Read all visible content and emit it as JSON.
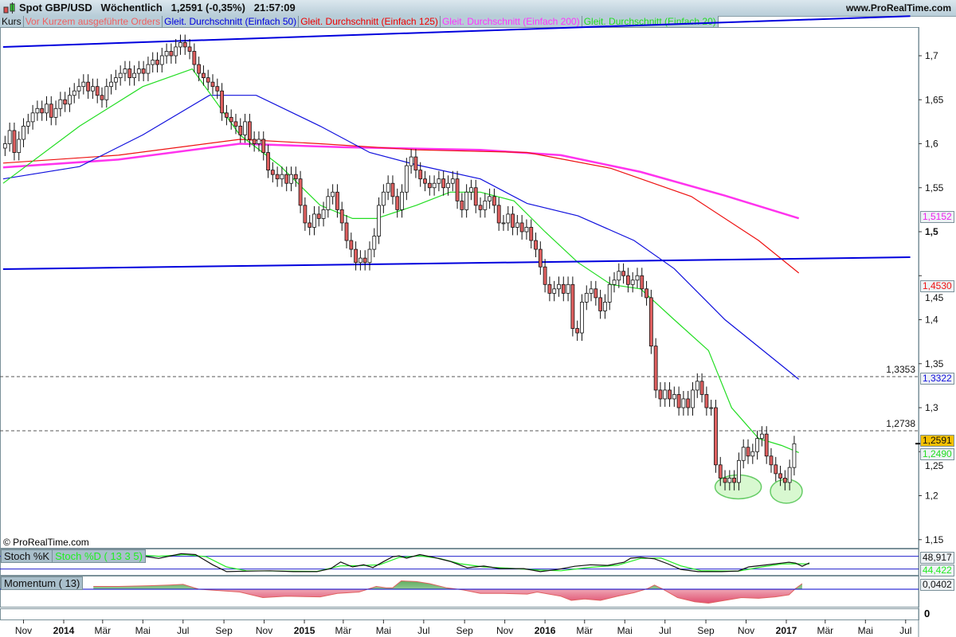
{
  "header": {
    "title": "Spot GBP/USD   Wöchentlich   1,2591 (-0,35%)   21:57:09",
    "site": "www.ProRealTime.com",
    "legend": [
      {
        "label": "Kurs",
        "color": "#111111"
      },
      {
        "label": "Vor Kurzem ausgeführte Orders",
        "color": "#f06060"
      },
      {
        "label": "Gleit. Durchschnitt (Einfach 50)",
        "color": "#0000dd"
      },
      {
        "label": "Gleit. Durchschnitt (Einfach 125)",
        "color": "#ee0000"
      },
      {
        "label": "Gleit. Durchschnitt (Einfach 200)",
        "color": "#ff33ff"
      },
      {
        "label": "Gleit. Durchschnitt (Einfach 20)",
        "color": "#22dd22"
      }
    ]
  },
  "copyright": "© ProRealTime.com",
  "chart_data": {
    "type": "candlestick",
    "interval": "weekly",
    "first_week": "2013-10-04",
    "first_open": 1.595,
    "closes": [
      1.6,
      1.615,
      1.59,
      1.605,
      1.62,
      1.625,
      1.635,
      1.64,
      1.635,
      1.645,
      1.63,
      1.64,
      1.65,
      1.645,
      1.655,
      1.66,
      1.665,
      1.67,
      1.66,
      1.665,
      1.655,
      1.65,
      1.665,
      1.67,
      1.675,
      1.68,
      1.685,
      1.675,
      1.68,
      1.685,
      1.68,
      1.69,
      1.695,
      1.69,
      1.7,
      1.705,
      1.7,
      1.71,
      1.715,
      1.71,
      1.705,
      1.69,
      1.68,
      1.675,
      1.67,
      1.665,
      1.66,
      1.635,
      1.63,
      1.625,
      1.62,
      1.61,
      1.625,
      1.605,
      1.6,
      1.605,
      1.59,
      1.57,
      1.565,
      1.56,
      1.565,
      1.555,
      1.565,
      1.56,
      1.53,
      1.51,
      1.505,
      1.52,
      1.515,
      1.525,
      1.54,
      1.545,
      1.525,
      1.51,
      1.49,
      1.48,
      1.465,
      1.47,
      1.465,
      1.48,
      1.495,
      1.53,
      1.545,
      1.555,
      1.54,
      1.525,
      1.545,
      1.575,
      1.585,
      1.57,
      1.56,
      1.555,
      1.55,
      1.555,
      1.56,
      1.55,
      1.555,
      1.56,
      1.535,
      1.525,
      1.545,
      1.55,
      1.53,
      1.525,
      1.535,
      1.54,
      1.53,
      1.51,
      1.51,
      1.52,
      1.505,
      1.51,
      1.5,
      1.505,
      1.49,
      1.48,
      1.46,
      1.44,
      1.43,
      1.435,
      1.44,
      1.43,
      1.44,
      1.39,
      1.385,
      1.42,
      1.43,
      1.435,
      1.425,
      1.41,
      1.42,
      1.44,
      1.445,
      1.455,
      1.45,
      1.44,
      1.445,
      1.45,
      1.435,
      1.425,
      1.37,
      1.32,
      1.31,
      1.32,
      1.31,
      1.315,
      1.3,
      1.31,
      1.3,
      1.32,
      1.33,
      1.315,
      1.3,
      1.3,
      1.235,
      1.22,
      1.215,
      1.22,
      1.215,
      1.24,
      1.255,
      1.245,
      1.25,
      1.265,
      1.27,
      1.245,
      1.235,
      1.225,
      1.22,
      1.215,
      1.232,
      1.259
    ],
    "moving_averages": [
      {
        "name": "Gleit. Durchschnitt (Einfach 20)",
        "color": "#22dd22",
        "last": "1,2490",
        "points": [
          [
            "2013-10-01",
            1.555
          ],
          [
            "2014-01-25",
            1.62
          ],
          [
            "2014-05-01",
            1.665
          ],
          [
            "2014-07-15",
            1.685
          ],
          [
            "2014-09-25",
            1.61
          ],
          [
            "2014-11-25",
            1.575
          ],
          [
            "2015-01-25",
            1.53
          ],
          [
            "2015-03-15",
            1.515
          ],
          [
            "2015-04-20",
            1.515
          ],
          [
            "2015-06-20",
            1.53
          ],
          [
            "2015-08-10",
            1.545
          ],
          [
            "2015-09-25",
            1.545
          ],
          [
            "2015-11-15",
            1.535
          ],
          [
            "2016-01-01",
            1.5
          ],
          [
            "2016-02-20",
            1.465
          ],
          [
            "2016-04-10",
            1.44
          ],
          [
            "2016-05-25",
            1.435
          ],
          [
            "2016-07-15",
            1.4
          ],
          [
            "2016-09-05",
            1.365
          ],
          [
            "2016-10-10",
            1.3
          ],
          [
            "2016-11-20",
            1.265
          ],
          [
            "2016-12-25",
            1.257
          ],
          [
            "2017-01-20",
            1.249
          ]
        ]
      },
      {
        "name": "Gleit. Durchschnitt (Einfach 50)",
        "color": "#1010dd",
        "last": "1,3322",
        "points": [
          [
            "2013-10-01",
            1.56
          ],
          [
            "2014-01-25",
            1.574
          ],
          [
            "2014-05-01",
            1.61
          ],
          [
            "2014-08-10",
            1.655
          ],
          [
            "2014-10-20",
            1.655
          ],
          [
            "2015-01-25",
            1.62
          ],
          [
            "2015-04-10",
            1.59
          ],
          [
            "2015-06-20",
            1.576
          ],
          [
            "2015-09-25",
            1.56
          ],
          [
            "2015-12-05",
            1.532
          ],
          [
            "2016-02-20",
            1.518
          ],
          [
            "2016-05-15",
            1.49
          ],
          [
            "2016-07-15",
            1.458
          ],
          [
            "2016-09-30",
            1.4
          ],
          [
            "2017-01-20",
            1.3322
          ]
        ]
      },
      {
        "name": "Gleit. Durchschnitt (Einfach 125)",
        "color": "#ee1111",
        "last": "1,4530",
        "points": [
          [
            "2013-10-01",
            1.578
          ],
          [
            "2014-03-25",
            1.587
          ],
          [
            "2014-09-25",
            1.605
          ],
          [
            "2015-01-25",
            1.6
          ],
          [
            "2015-06-20",
            1.593
          ],
          [
            "2015-12-05",
            1.59
          ],
          [
            "2016-04-10",
            1.572
          ],
          [
            "2016-08-10",
            1.54
          ],
          [
            "2016-11-20",
            1.49
          ],
          [
            "2017-01-20",
            1.453
          ]
        ]
      },
      {
        "name": "Gleit. Durchschnitt (Einfach 200)",
        "color": "#ff33ee",
        "last": "1,5152",
        "points": [
          [
            "2013-10-01",
            1.573
          ],
          [
            "2014-03-25",
            1.582
          ],
          [
            "2014-09-25",
            1.6
          ],
          [
            "2015-03-01",
            1.596
          ],
          [
            "2015-09-25",
            1.593
          ],
          [
            "2016-01-25",
            1.587
          ],
          [
            "2016-05-25",
            1.568
          ],
          [
            "2016-09-30",
            1.541
          ],
          [
            "2017-01-20",
            1.5152
          ]
        ]
      }
    ],
    "trendlines": [
      {
        "from": [
          "2013-10-01",
          1.71
        ],
        "to": [
          "2017-07-08",
          1.745
        ],
        "color": "#0000dd"
      },
      {
        "from": [
          "2013-10-01",
          1.4575
        ],
        "to": [
          "2017-07-08",
          1.471
        ],
        "color": "#0000dd"
      }
    ],
    "horizontal_levels": [
      {
        "value": 1.3353,
        "label": "1,3353"
      },
      {
        "value": 1.2738,
        "label": "1,2738"
      }
    ],
    "highlight_ellipses": [
      {
        "center": [
          "2016-10-20",
          1.21
        ]
      },
      {
        "center": [
          "2017-01-01",
          1.205
        ]
      }
    ],
    "price_axis": {
      "range": [
        1.13,
        1.745
      ],
      "ticks": [
        {
          "v": 1.7,
          "t": "1,7"
        },
        {
          "v": 1.65,
          "t": "1,65"
        },
        {
          "v": 1.6,
          "t": "1,6"
        },
        {
          "v": 1.55,
          "t": "1,55"
        },
        {
          "v": 1.5,
          "t": "1,5",
          "bold": true
        },
        {
          "v": 1.45,
          "t": "1,45"
        },
        {
          "v": 1.4,
          "t": "1,4"
        },
        {
          "v": 1.35,
          "t": "1,35"
        },
        {
          "v": 1.3,
          "t": "1,3"
        },
        {
          "v": 1.25,
          "t": "1,25"
        },
        {
          "v": 1.2,
          "t": "1,2"
        },
        {
          "v": 1.15,
          "t": "1,15"
        }
      ]
    },
    "last_price": {
      "label": "1,2591",
      "color": "#f5c000"
    },
    "x_axis": {
      "ticks": [
        {
          "d": "2013-11-01",
          "t": "Nov"
        },
        {
          "d": "2014-01-01",
          "t": "2014",
          "bold": true
        },
        {
          "d": "2014-03-01",
          "t": "Mär"
        },
        {
          "d": "2014-05-01",
          "t": "Mai"
        },
        {
          "d": "2014-07-01",
          "t": "Jul"
        },
        {
          "d": "2014-09-01",
          "t": "Sep"
        },
        {
          "d": "2014-11-01",
          "t": "Nov"
        },
        {
          "d": "2015-01-01",
          "t": "2015",
          "bold": true
        },
        {
          "d": "2015-03-01",
          "t": "Mär"
        },
        {
          "d": "2015-05-01",
          "t": "Mai"
        },
        {
          "d": "2015-07-01",
          "t": "Jul"
        },
        {
          "d": "2015-09-01",
          "t": "Sep"
        },
        {
          "d": "2015-11-01",
          "t": "Nov"
        },
        {
          "d": "2016-01-01",
          "t": "2016",
          "bold": true
        },
        {
          "d": "2016-03-01",
          "t": "Mär"
        },
        {
          "d": "2016-05-01",
          "t": "Mai"
        },
        {
          "d": "2016-07-01",
          "t": "Jul"
        },
        {
          "d": "2016-09-01",
          "t": "Sep"
        },
        {
          "d": "2016-11-01",
          "t": "Nov"
        },
        {
          "d": "2017-01-01",
          "t": "2017",
          "bold": true
        },
        {
          "d": "2017-03-01",
          "t": "Mär"
        },
        {
          "d": "2017-05-01",
          "t": "Mai"
        },
        {
          "d": "2017-07-01",
          "t": "Jul"
        }
      ]
    },
    "stochastic": {
      "label_k": "Stoch %K",
      "label_d": "Stoch %D ( 13 3 5)",
      "levels": [
        80,
        20
      ],
      "last_k": "48,917",
      "last_d": "44,422",
      "k": [
        [
          "2014-03-20",
          90
        ],
        [
          "2014-04-15",
          88
        ],
        [
          "2014-05-25",
          70
        ],
        [
          "2014-06-28",
          92
        ],
        [
          "2014-07-20",
          88
        ],
        [
          "2014-08-15",
          40
        ],
        [
          "2014-09-05",
          8
        ],
        [
          "2014-10-05",
          10
        ],
        [
          "2014-11-10",
          12
        ],
        [
          "2014-12-15",
          8
        ],
        [
          "2015-01-20",
          8
        ],
        [
          "2015-02-10",
          22
        ],
        [
          "2015-02-25",
          53
        ],
        [
          "2015-03-15",
          30
        ],
        [
          "2015-04-01",
          40
        ],
        [
          "2015-04-15",
          27
        ],
        [
          "2015-05-01",
          55
        ],
        [
          "2015-05-15",
          78
        ],
        [
          "2015-05-25",
          82
        ],
        [
          "2015-06-05",
          71
        ],
        [
          "2015-06-25",
          88
        ],
        [
          "2015-07-15",
          76
        ],
        [
          "2015-08-10",
          56
        ],
        [
          "2015-09-05",
          26
        ],
        [
          "2015-09-30",
          34
        ],
        [
          "2015-10-25",
          22
        ],
        [
          "2015-11-30",
          22
        ],
        [
          "2015-12-25",
          8
        ],
        [
          "2016-01-20",
          18
        ],
        [
          "2016-02-15",
          33
        ],
        [
          "2016-03-10",
          40
        ],
        [
          "2016-04-05",
          37
        ],
        [
          "2016-04-30",
          52
        ],
        [
          "2016-05-10",
          71
        ],
        [
          "2016-05-25",
          75
        ],
        [
          "2016-06-15",
          68
        ],
        [
          "2016-07-05",
          45
        ],
        [
          "2016-07-25",
          18
        ],
        [
          "2016-08-20",
          8
        ],
        [
          "2016-09-25",
          8
        ],
        [
          "2016-10-20",
          11
        ],
        [
          "2016-11-05",
          30
        ],
        [
          "2016-12-05",
          41
        ],
        [
          "2016-12-25",
          48
        ],
        [
          "2017-01-05",
          52
        ],
        [
          "2017-01-15",
          48
        ],
        [
          "2017-01-25",
          33
        ],
        [
          "2017-02-05",
          49
        ]
      ],
      "d": [
        [
          "2014-03-20",
          82
        ],
        [
          "2014-04-25",
          86
        ],
        [
          "2014-05-25",
          80
        ],
        [
          "2014-07-05",
          88
        ],
        [
          "2014-08-05",
          78
        ],
        [
          "2014-09-05",
          30
        ],
        [
          "2014-10-05",
          12
        ],
        [
          "2014-12-15",
          10
        ],
        [
          "2015-01-20",
          9
        ],
        [
          "2015-02-25",
          35
        ],
        [
          "2015-03-25",
          36
        ],
        [
          "2015-04-25",
          40
        ],
        [
          "2015-05-25",
          75
        ],
        [
          "2015-06-25",
          82
        ],
        [
          "2015-07-25",
          70
        ],
        [
          "2015-08-25",
          45
        ],
        [
          "2015-09-30",
          30
        ],
        [
          "2015-11-01",
          25
        ],
        [
          "2015-12-25",
          15
        ],
        [
          "2016-01-25",
          12
        ],
        [
          "2016-03-10",
          28
        ],
        [
          "2016-04-20",
          38
        ],
        [
          "2016-05-25",
          70
        ],
        [
          "2016-06-25",
          72
        ],
        [
          "2016-07-25",
          35
        ],
        [
          "2016-08-25",
          12
        ],
        [
          "2016-10-20",
          10
        ],
        [
          "2016-11-25",
          30
        ],
        [
          "2016-12-25",
          44
        ],
        [
          "2017-01-15",
          45
        ],
        [
          "2017-02-05",
          44
        ]
      ]
    },
    "momentum": {
      "label": "Momentum ( 13)",
      "last": "0,0402",
      "zero_color": "#0000cc",
      "points": [
        [
          "2014-02-15",
          0.02
        ],
        [
          "2014-03-25",
          0.02
        ],
        [
          "2014-05-10",
          0.025
        ],
        [
          "2014-06-10",
          0.03
        ],
        [
          "2014-07-01",
          0.035
        ],
        [
          "2014-07-25",
          0.0
        ],
        [
          "2014-09-25",
          -0.02
        ],
        [
          "2014-10-30",
          -0.06
        ],
        [
          "2014-12-05",
          -0.05
        ],
        [
          "2015-01-25",
          -0.055
        ],
        [
          "2015-02-20",
          -0.03
        ],
        [
          "2015-03-25",
          -0.02
        ],
        [
          "2015-04-20",
          0.02
        ],
        [
          "2015-05-05",
          0.01
        ],
        [
          "2015-05-15",
          0.01
        ],
        [
          "2015-05-28",
          0.06
        ],
        [
          "2015-06-20",
          0.055
        ],
        [
          "2015-07-10",
          0.04
        ],
        [
          "2015-08-05",
          0.01
        ],
        [
          "2015-08-30",
          -0.005
        ],
        [
          "2015-09-25",
          -0.03
        ],
        [
          "2015-10-30",
          -0.03
        ],
        [
          "2015-12-05",
          -0.035
        ],
        [
          "2015-12-20",
          -0.02
        ],
        [
          "2016-01-25",
          -0.05
        ],
        [
          "2016-02-10",
          -0.08
        ],
        [
          "2016-03-01",
          -0.07
        ],
        [
          "2016-03-25",
          -0.08
        ],
        [
          "2016-04-20",
          -0.05
        ],
        [
          "2016-05-15",
          -0.025
        ],
        [
          "2016-06-05",
          0.005
        ],
        [
          "2016-06-15",
          0.03
        ],
        [
          "2016-06-28",
          0.0
        ],
        [
          "2016-07-20",
          -0.06
        ],
        [
          "2016-08-15",
          -0.09
        ],
        [
          "2016-09-05",
          -0.1
        ],
        [
          "2016-09-30",
          -0.08
        ],
        [
          "2016-10-25",
          -0.06
        ],
        [
          "2016-11-20",
          -0.065
        ],
        [
          "2016-12-15",
          -0.055
        ],
        [
          "2017-01-05",
          -0.04
        ],
        [
          "2017-01-15",
          0.005
        ],
        [
          "2017-01-25",
          0.04
        ]
      ]
    },
    "bottom_panel": {
      "label": "0"
    }
  }
}
